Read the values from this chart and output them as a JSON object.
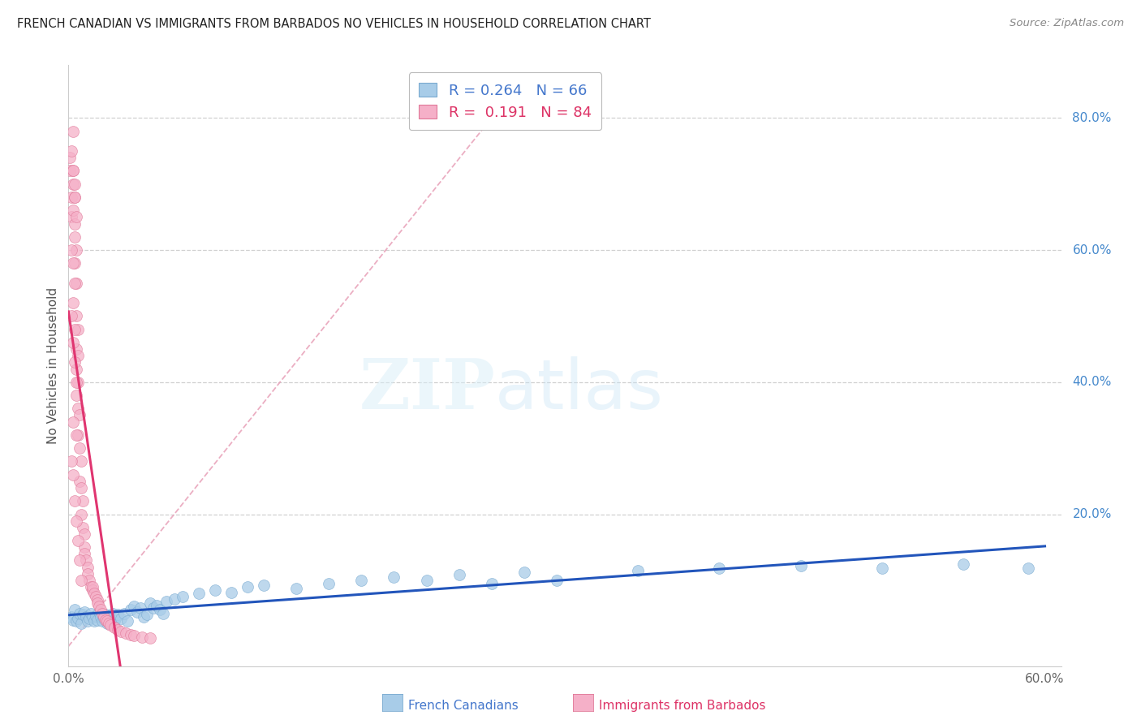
{
  "title": "FRENCH CANADIAN VS IMMIGRANTS FROM BARBADOS NO VEHICLES IN HOUSEHOLD CORRELATION CHART",
  "source": "Source: ZipAtlas.com",
  "ylabel": "No Vehicles in Household",
  "blue_R": 0.264,
  "blue_N": 66,
  "pink_R": 0.191,
  "pink_N": 84,
  "blue_color": "#a8cce8",
  "pink_color": "#f5b0c8",
  "blue_edge_color": "#7aaad0",
  "pink_edge_color": "#e07898",
  "blue_line_color": "#2255bb",
  "pink_line_color": "#e03570",
  "dash_line_color": "#e8b0c8",
  "xlim": [
    0.0,
    0.61
  ],
  "ylim": [
    -0.03,
    0.88
  ],
  "yticks_right": [
    0.2,
    0.4,
    0.6,
    0.8
  ],
  "ytick_right_labels": [
    "20.0%",
    "40.0%",
    "60.0%",
    "80.0%"
  ],
  "grid_color": "#d0d0d0",
  "background_color": "#ffffff",
  "title_fontsize": 10.5,
  "blue_scatter_x": [
    0.002,
    0.003,
    0.004,
    0.005,
    0.006,
    0.007,
    0.008,
    0.009,
    0.01,
    0.011,
    0.012,
    0.013,
    0.014,
    0.015,
    0.016,
    0.017,
    0.018,
    0.019,
    0.02,
    0.021,
    0.022,
    0.023,
    0.024,
    0.025,
    0.026,
    0.027,
    0.028,
    0.029,
    0.03,
    0.032,
    0.034,
    0.036,
    0.038,
    0.04,
    0.042,
    0.044,
    0.046,
    0.048,
    0.05,
    0.052,
    0.054,
    0.056,
    0.058,
    0.06,
    0.065,
    0.07,
    0.08,
    0.09,
    0.1,
    0.11,
    0.12,
    0.14,
    0.16,
    0.18,
    0.2,
    0.22,
    0.24,
    0.26,
    0.28,
    0.3,
    0.35,
    0.4,
    0.45,
    0.5,
    0.55,
    0.59
  ],
  "blue_scatter_y": [
    0.045,
    0.04,
    0.055,
    0.038,
    0.042,
    0.05,
    0.035,
    0.048,
    0.052,
    0.045,
    0.038,
    0.042,
    0.05,
    0.044,
    0.038,
    0.046,
    0.04,
    0.052,
    0.044,
    0.038,
    0.042,
    0.048,
    0.035,
    0.046,
    0.04,
    0.05,
    0.038,
    0.044,
    0.048,
    0.042,
    0.05,
    0.038,
    0.055,
    0.06,
    0.052,
    0.058,
    0.044,
    0.048,
    0.065,
    0.058,
    0.062,
    0.055,
    0.05,
    0.068,
    0.072,
    0.075,
    0.08,
    0.085,
    0.082,
    0.09,
    0.092,
    0.088,
    0.095,
    0.1,
    0.105,
    0.1,
    0.108,
    0.095,
    0.112,
    0.1,
    0.115,
    0.118,
    0.122,
    0.118,
    0.125,
    0.118
  ],
  "pink_scatter_x": [
    0.001,
    0.002,
    0.002,
    0.003,
    0.003,
    0.003,
    0.004,
    0.004,
    0.004,
    0.004,
    0.005,
    0.005,
    0.005,
    0.005,
    0.005,
    0.006,
    0.006,
    0.006,
    0.006,
    0.006,
    0.007,
    0.007,
    0.007,
    0.008,
    0.008,
    0.008,
    0.009,
    0.009,
    0.01,
    0.01,
    0.01,
    0.011,
    0.012,
    0.012,
    0.013,
    0.014,
    0.015,
    0.015,
    0.016,
    0.017,
    0.018,
    0.018,
    0.019,
    0.02,
    0.021,
    0.022,
    0.023,
    0.024,
    0.025,
    0.026,
    0.028,
    0.03,
    0.032,
    0.035,
    0.038,
    0.04,
    0.045,
    0.05,
    0.001,
    0.002,
    0.003,
    0.003,
    0.004,
    0.004,
    0.005,
    0.005,
    0.002,
    0.003,
    0.004,
    0.005,
    0.003,
    0.004,
    0.002,
    0.003,
    0.004,
    0.003,
    0.005,
    0.002,
    0.003,
    0.004,
    0.005,
    0.006,
    0.007,
    0.008
  ],
  "pink_scatter_y": [
    0.72,
    0.68,
    0.65,
    0.7,
    0.66,
    0.72,
    0.64,
    0.68,
    0.62,
    0.58,
    0.65,
    0.6,
    0.55,
    0.5,
    0.45,
    0.48,
    0.44,
    0.4,
    0.36,
    0.32,
    0.35,
    0.3,
    0.25,
    0.28,
    0.24,
    0.2,
    0.22,
    0.18,
    0.17,
    0.15,
    0.14,
    0.13,
    0.12,
    0.11,
    0.1,
    0.09,
    0.085,
    0.09,
    0.08,
    0.075,
    0.07,
    0.065,
    0.06,
    0.055,
    0.05,
    0.045,
    0.04,
    0.038,
    0.035,
    0.032,
    0.028,
    0.025,
    0.022,
    0.02,
    0.018,
    0.016,
    0.014,
    0.012,
    0.74,
    0.75,
    0.78,
    0.72,
    0.7,
    0.68,
    0.42,
    0.38,
    0.5,
    0.46,
    0.43,
    0.4,
    0.58,
    0.55,
    0.6,
    0.52,
    0.48,
    0.34,
    0.32,
    0.28,
    0.26,
    0.22,
    0.19,
    0.16,
    0.13,
    0.1
  ]
}
